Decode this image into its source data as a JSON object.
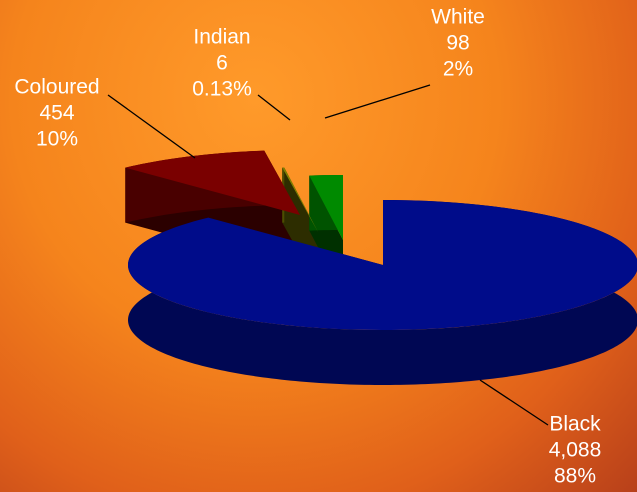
{
  "chart_data": {
    "type": "pie",
    "categories": [
      "Black",
      "Coloured",
      "Indian",
      "White"
    ],
    "values": [
      4088,
      454,
      6,
      98
    ],
    "value_labels": [
      "4,088",
      "454",
      "6",
      "98"
    ],
    "percent_labels": [
      "88%",
      "10%",
      "0.13%",
      "2%"
    ],
    "colors": [
      "#000c8a",
      "#7a0000",
      "#808000",
      "#008a00"
    ]
  }
}
